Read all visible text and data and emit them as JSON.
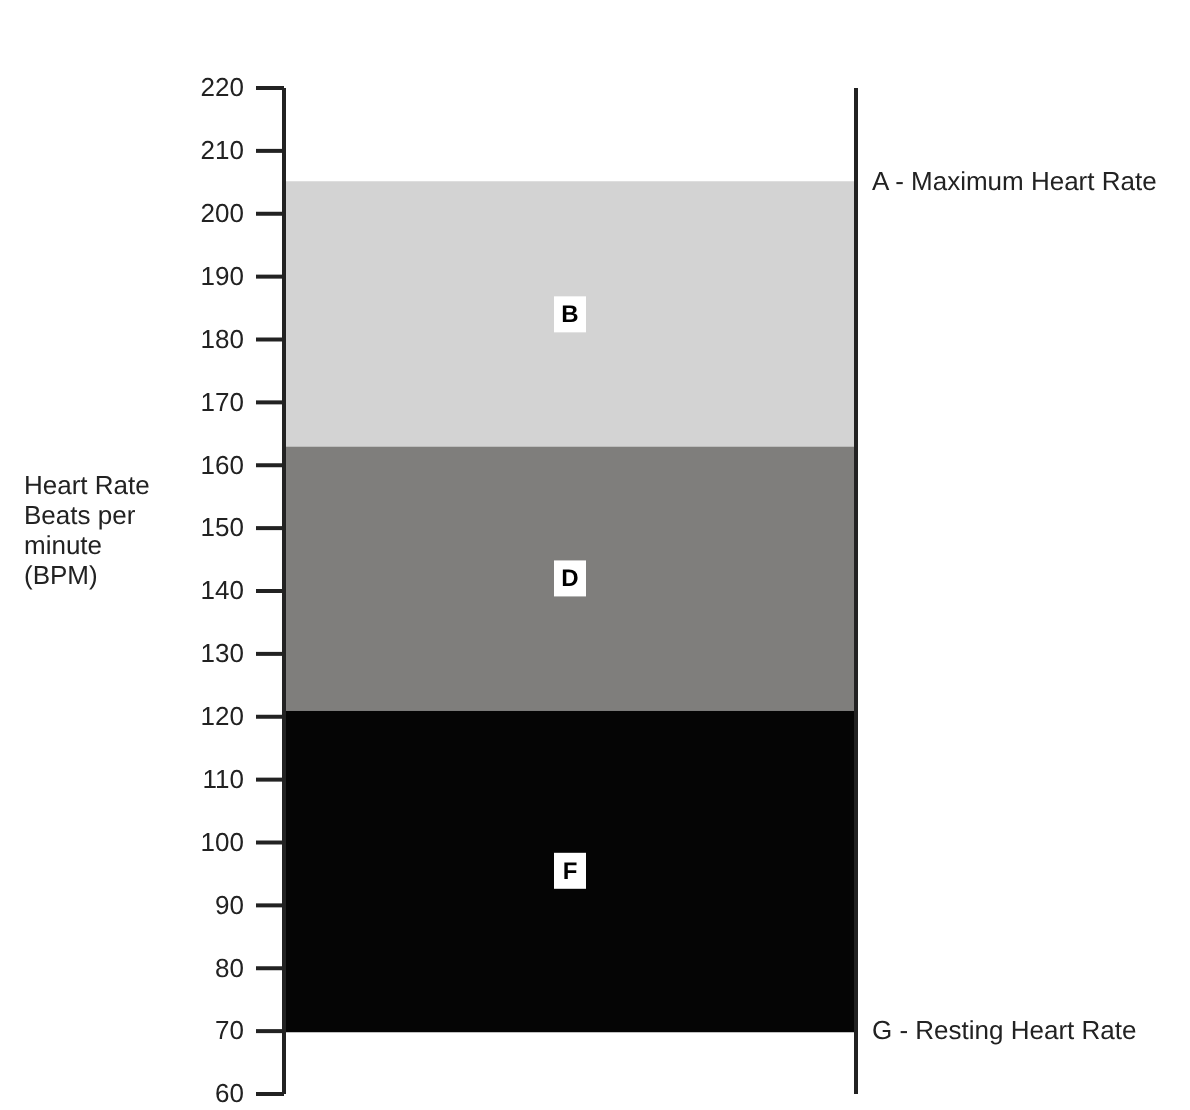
{
  "chart_data": {
    "type": "bar",
    "categories": [
      null
    ],
    "ylabel": "Heart Rate Beats per minute (BPM)",
    "ylim": [
      60,
      220
    ],
    "yticks": [
      60,
      70,
      80,
      90,
      100,
      110,
      120,
      130,
      140,
      150,
      160,
      170,
      180,
      190,
      200,
      210,
      220
    ],
    "bands": [
      {
        "axis": "y",
        "from": 70,
        "to": 121,
        "label": "F",
        "color": "#050505"
      },
      {
        "axis": "y",
        "from": 121,
        "to": 163,
        "label": "D",
        "color": "#7f7e7c"
      },
      {
        "axis": "y",
        "from": 163,
        "to": 205,
        "label": "B",
        "color": "#d3d3d3"
      }
    ],
    "ref_lines": [
      {
        "axis": "y",
        "value": 205,
        "label": "A - Maximum Heart Rate",
        "color": "#d3d3d3"
      },
      {
        "axis": "y",
        "value": 70,
        "label": "G - Resting Heart Rate",
        "color": "#050505"
      }
    ],
    "grid": false
  }
}
